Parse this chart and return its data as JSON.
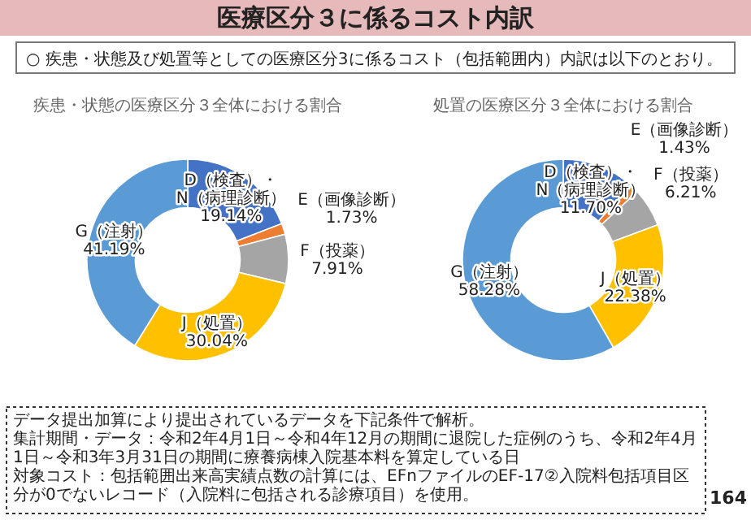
{
  "chart_data": [
    {
      "type": "other",
      "title": "医療区分３に係るコスト内訳",
      "subtitle": "○ 疾患・状態及び処置等としての医療区分3に係るコスト（包括範囲内）内訳は以下のとおり。"
    },
    {
      "type": "donut",
      "title": "疾患・状態の医療区分３全体における割合",
      "categories": [
        "D（検査）・N（病理診断）",
        "E（画像診断）",
        "F（投薬）",
        "J（処置）",
        "G（注射）"
      ],
      "values": [
        19.14,
        1.73,
        7.91,
        30.04,
        41.19
      ],
      "value_labels": [
        "19.14%",
        "1.73%",
        "7.91%",
        "30.04%",
        "41.19%"
      ],
      "colors": [
        "#4472c4",
        "#ed7d31",
        "#a5a5a5",
        "#ffc000",
        "#5b9bd5"
      ]
    },
    {
      "type": "donut",
      "title": "処置の医療区分３全体における割合",
      "categories": [
        "D（検査）・N（病理診断）",
        "E（画像診断）",
        "F（投薬）",
        "J（処置）",
        "G（注射）"
      ],
      "values": [
        11.7,
        1.43,
        6.21,
        22.38,
        58.28
      ],
      "value_labels": [
        "11.70%",
        "1.43%",
        "6.21%",
        "22.38%",
        "58.28%"
      ],
      "colors": [
        "#4472c4",
        "#ed7d31",
        "#a5a5a5",
        "#ffc000",
        "#5b9bd5"
      ]
    },
    {
      "type": "other",
      "annotations": [
        "データ提出加算により提出されているデータを下記条件で解析。",
        "集計期間・データ：令和2年4月1日～令和4年12月の期間に退院した症例のうち、令和2年4月1日～令和3年3月31日の期間に療養病棟入院基本料を算定している日",
        "対象コスト：包括範囲出来高実績点数の計算には、EFnファイルのEF-17②入院料包括項目区分が0でないレコード（入院料に包括される診療項目）を使用。",
        "164"
      ]
    }
  ]
}
